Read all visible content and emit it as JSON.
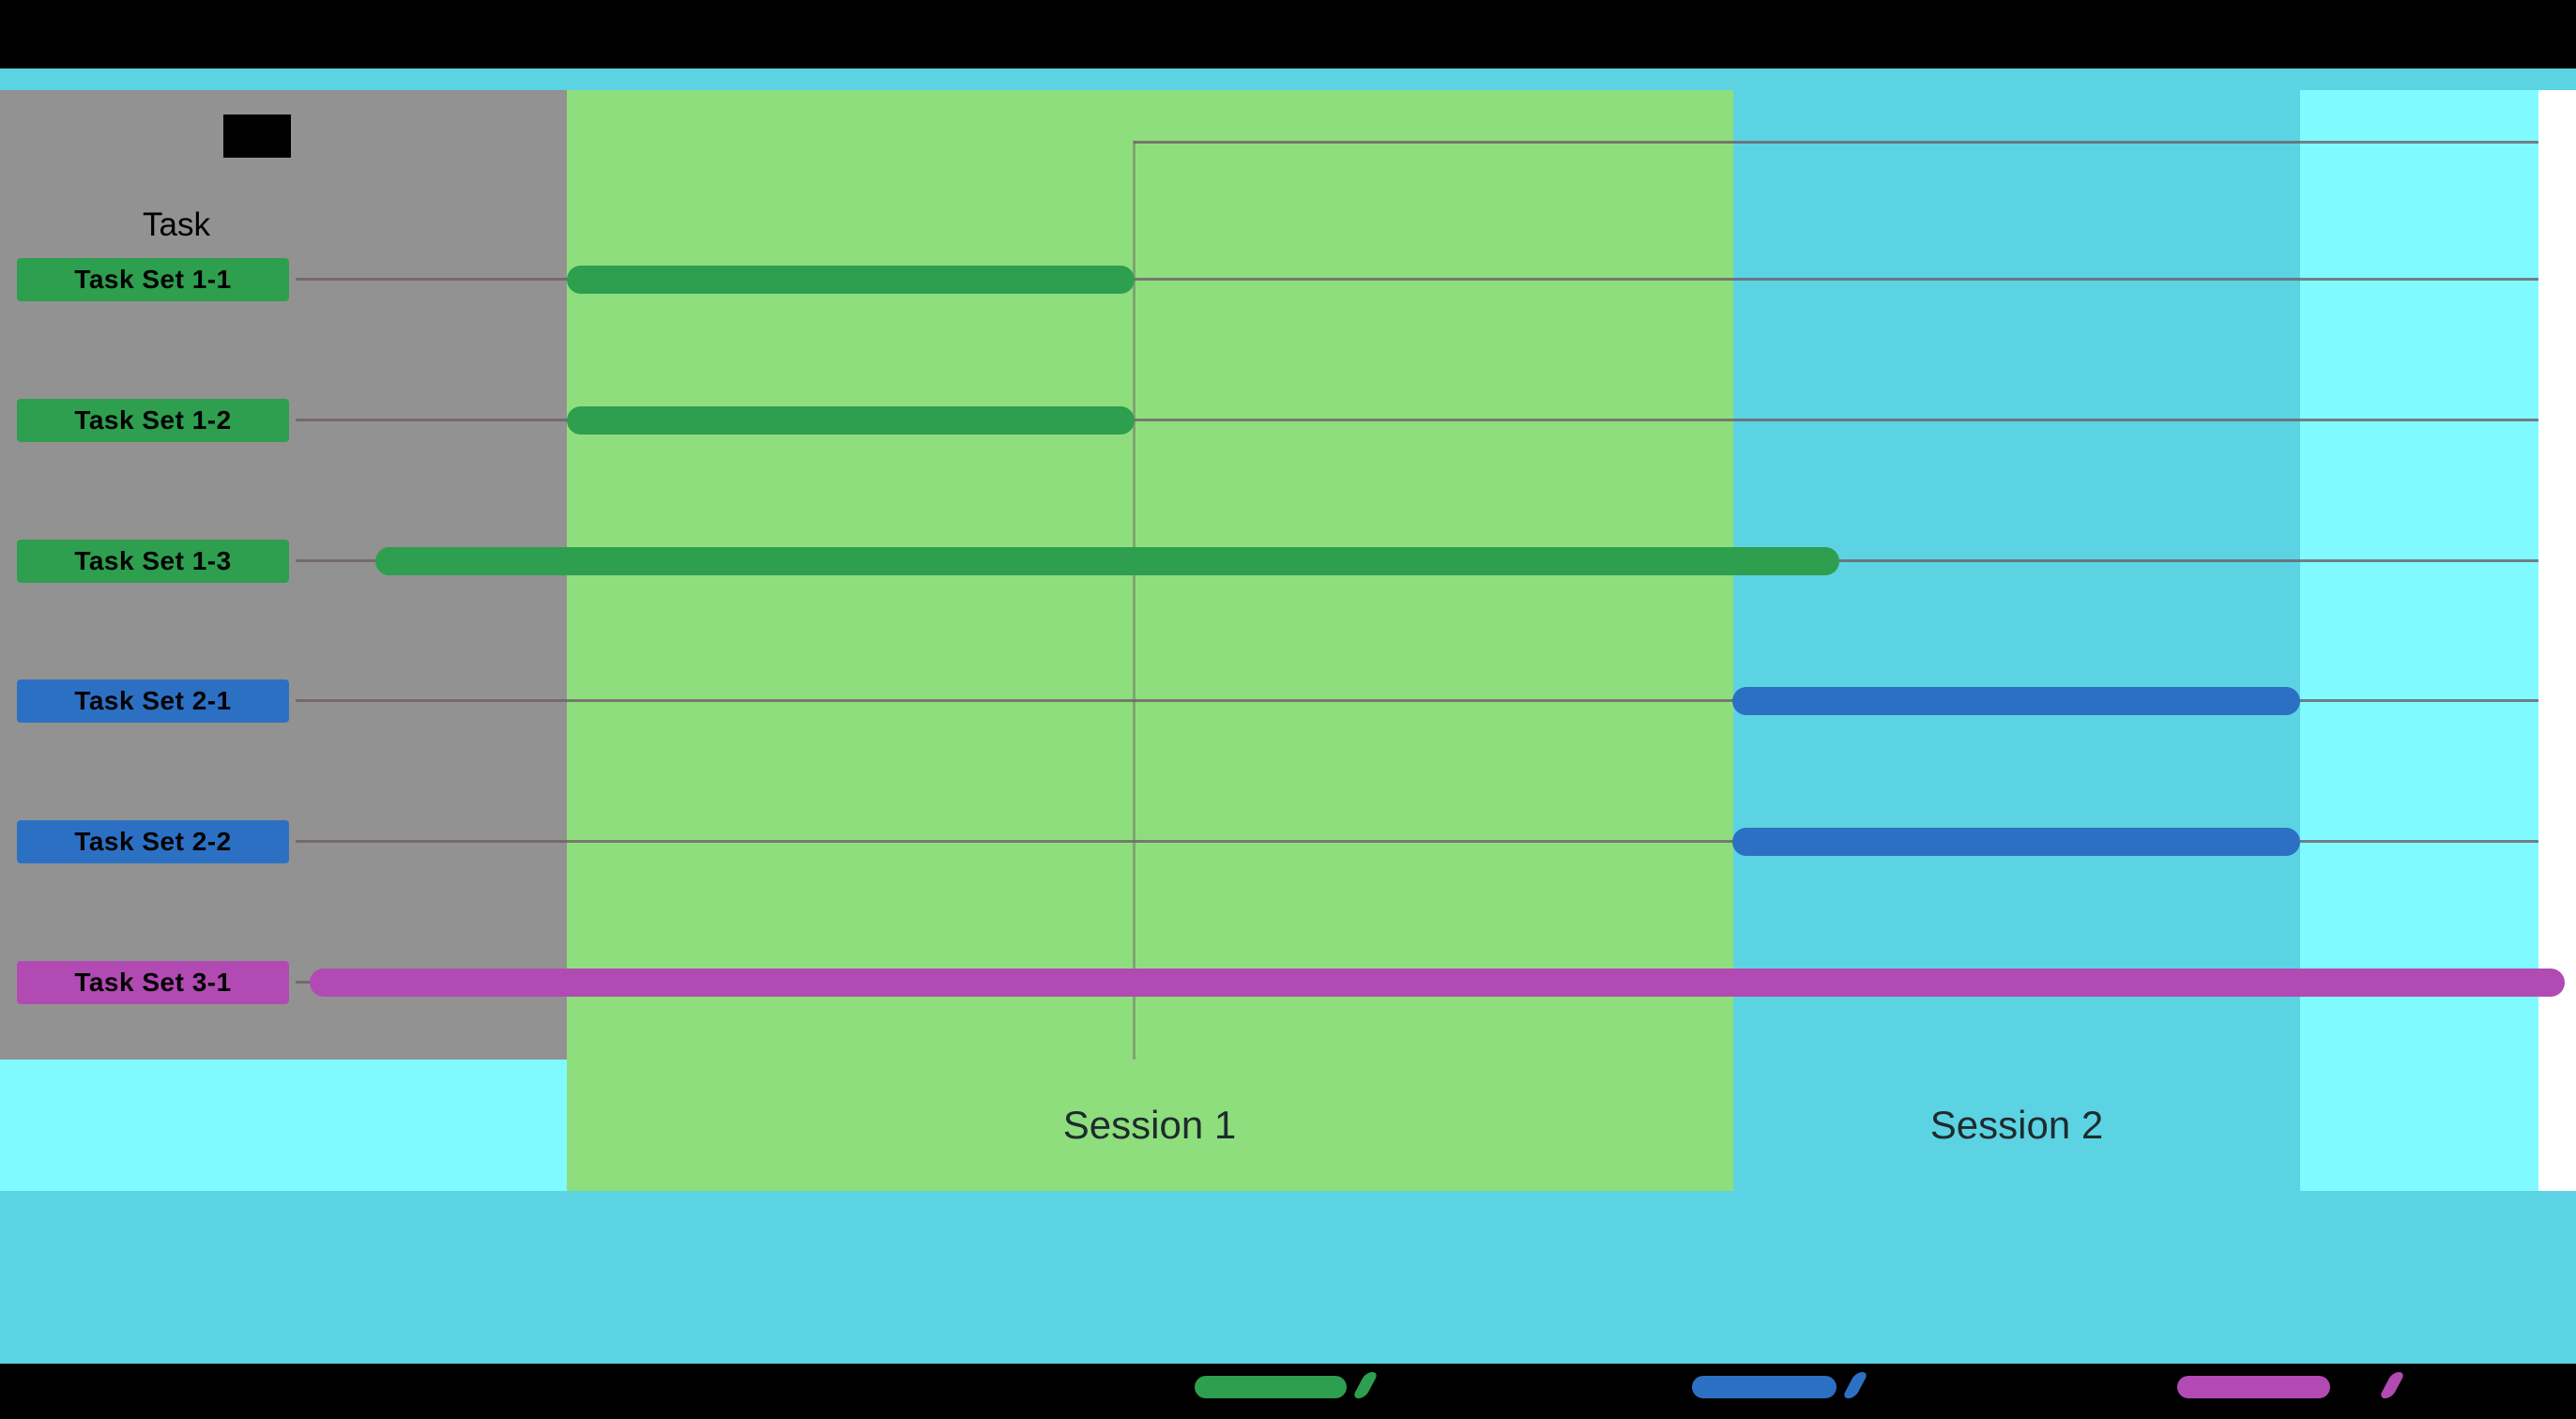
{
  "header": {
    "task_column_label": "Task"
  },
  "rows": [
    {
      "label": "Task Set 1-1",
      "color": "#2e9e4f"
    },
    {
      "label": "Task Set 1-2",
      "color": "#2e9e4f"
    },
    {
      "label": "Task Set 1-3",
      "color": "#2e9e4f"
    },
    {
      "label": "Task Set 2-1",
      "color": "#2c70c4"
    },
    {
      "label": "Task Set 2-2",
      "color": "#2c70c4"
    },
    {
      "label": "Task Set 3-1",
      "color": "#b14ab3"
    }
  ],
  "sessions": [
    {
      "label": "Session 1"
    },
    {
      "label": "Session 2"
    }
  ],
  "legend": {
    "items": [
      {
        "label": "",
        "color": "#2e9e4f"
      },
      {
        "label": "",
        "color": "#2c70c4"
      },
      {
        "label": "",
        "color": "#b14ab3"
      }
    ]
  },
  "colors": {
    "session1_bg": "#8fde7d",
    "session2_bg": "#5cd3e2",
    "pre_session_bg": "#929292",
    "post_session_bg": "#81faff",
    "top_strip": "#5cd3e2",
    "bottom_band": "#5cd3e2",
    "letterbox": "#000000",
    "green_series": "#2e9e4f",
    "blue_series": "#2c70c4",
    "magenta_series": "#b14ab3",
    "gridline": "#6e5f68"
  },
  "chart_data": {
    "type": "bar",
    "orientation": "horizontal",
    "variant": "gantt-timeline",
    "title": "",
    "xlabel": "",
    "ylabel": "Task",
    "x_unit": "percent of visible timeline (no numeric tick labels shown)",
    "x_range_pct": [
      0,
      100
    ],
    "grid": true,
    "legend_position": "bottom",
    "categories": [
      "Task Set 1-1",
      "Task Set 1-2",
      "Task Set 1-3",
      "Task Set 2-1",
      "Task Set 2-2",
      "Task Set 3-1"
    ],
    "bars": [
      {
        "category": "Task Set 1-1",
        "start_pct": 11.9,
        "end_pct": 36.8,
        "color": "#2e9e4f",
        "session": "Session 1"
      },
      {
        "category": "Task Set 1-2",
        "start_pct": 11.9,
        "end_pct": 36.8,
        "color": "#2e9e4f",
        "session": "Session 1"
      },
      {
        "category": "Task Set 1-3",
        "start_pct": 3.5,
        "end_pct": 67.7,
        "color": "#2e9e4f",
        "session": "Session 1"
      },
      {
        "category": "Task Set 2-1",
        "start_pct": 63.0,
        "end_pct": 87.9,
        "color": "#2c70c4",
        "session": "Session 2"
      },
      {
        "category": "Task Set 2-2",
        "start_pct": 63.0,
        "end_pct": 87.9,
        "color": "#2c70c4",
        "session": "Session 2"
      },
      {
        "category": "Task Set 3-1",
        "start_pct": 0.6,
        "end_pct": 99.5,
        "color": "#b14ab3",
        "session": "spans both sessions"
      }
    ],
    "session_bands": [
      {
        "label": "Session 1",
        "start_pct": 11.9,
        "end_pct": 63.0,
        "color": "#8fde7d"
      },
      {
        "label": "Session 2",
        "start_pct": 63.0,
        "end_pct": 87.9,
        "color": "#5cd3e2"
      }
    ]
  }
}
